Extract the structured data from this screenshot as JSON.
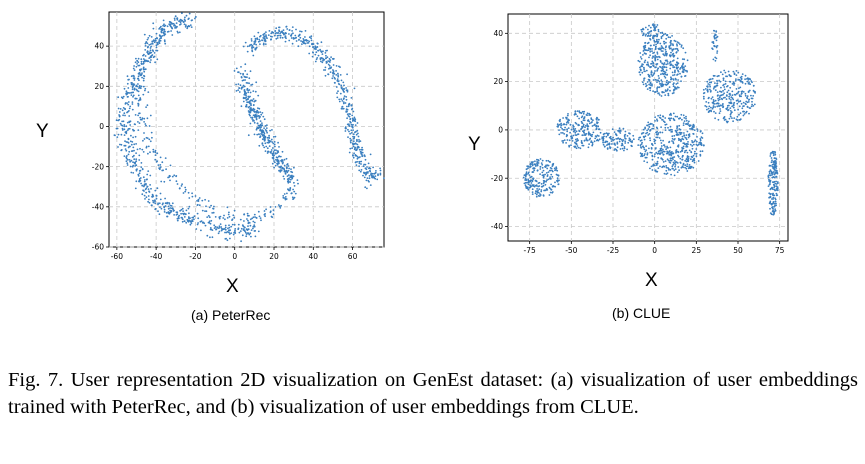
{
  "caption": "Fig. 7.  User representation 2D visualization on GenEst dataset: (a) visualization of user embeddings trained with PeterRec, and (b) visualization of user embeddings from CLUE.",
  "colors": {
    "point": "#3a7fbf",
    "grid": "#c8c8c8",
    "frame": "#000000"
  },
  "chart_data": [
    {
      "type": "scatter",
      "title": "(a) PeterRec",
      "xlabel": "X",
      "ylabel": "Y",
      "xlim": [
        -64,
        76
      ],
      "ylim": [
        -60,
        57
      ],
      "xticks": [
        -60,
        -40,
        -20,
        0,
        20,
        40,
        60
      ],
      "yticks": [
        -60,
        -40,
        -20,
        0,
        20,
        40
      ],
      "grid": true,
      "clusters": [
        {
          "shape": "curved band",
          "path": [
            [
              -22,
              53
            ],
            [
              -33,
              50
            ],
            [
              -42,
              40
            ],
            [
              -50,
              25
            ],
            [
              -55,
              10
            ],
            [
              -56,
              -2
            ],
            [
              -52,
              -15
            ],
            [
              -46,
              -28
            ],
            [
              -40,
              -38
            ],
            [
              -28,
              -44
            ],
            [
              -15,
              -48
            ],
            [
              -4,
              -52
            ],
            [
              6,
              -52
            ],
            [
              12,
              -46
            ]
          ],
          "point_count": 650,
          "spread": 4
        },
        {
          "shape": "curved band",
          "path": [
            [
              -27,
              53
            ],
            [
              -40,
              46
            ],
            [
              -46,
              32
            ],
            [
              -49,
              16
            ],
            [
              -47,
              2
            ],
            [
              -42,
              -12
            ],
            [
              -33,
              -25
            ],
            [
              -22,
              -35
            ],
            [
              -10,
              -42
            ],
            [
              3,
              -46
            ],
            [
              15,
              -44
            ],
            [
              24,
              -38
            ],
            [
              28,
              -32
            ]
          ],
          "point_count": 260,
          "spread": 3
        },
        {
          "shape": "curved band",
          "path": [
            [
              3,
              30
            ],
            [
              8,
              12
            ],
            [
              15,
              -2
            ],
            [
              22,
              -15
            ],
            [
              28,
              -26
            ],
            [
              30,
              -34
            ]
          ],
          "point_count": 230,
          "spread": 3
        },
        {
          "shape": "curved band",
          "path": [
            [
              6,
              38
            ],
            [
              14,
              44
            ],
            [
              25,
              47
            ],
            [
              38,
              42
            ],
            [
              48,
              32
            ],
            [
              55,
              18
            ],
            [
              60,
              0
            ],
            [
              62,
              -12
            ],
            [
              66,
              -20
            ],
            [
              70,
              -27
            ],
            [
              72,
              -22
            ]
          ],
          "point_count": 520,
          "spread": 3
        },
        {
          "shape": "curved band",
          "path": [
            [
              3,
              20
            ],
            [
              8,
              10
            ],
            [
              12,
              0
            ],
            [
              17,
              -10
            ],
            [
              23,
              -19
            ],
            [
              27,
              -24
            ]
          ],
          "point_count": 160,
          "spread": 2.5
        }
      ]
    },
    {
      "type": "scatter",
      "title": "(b) CLUE",
      "xlabel": "X",
      "ylabel": "Y",
      "xlim": [
        -88,
        80
      ],
      "ylim": [
        -46,
        48
      ],
      "xticks": [
        -75,
        -50,
        -25,
        0,
        25,
        50,
        75
      ],
      "yticks": [
        -40,
        -20,
        0,
        20,
        40
      ],
      "grid": true,
      "clusters": [
        {
          "shape": "blob",
          "center": [
            -68,
            -20
          ],
          "radius": [
            11,
            8
          ],
          "point_count": 230
        },
        {
          "shape": "blob",
          "center": [
            -45,
            0
          ],
          "radius": [
            14,
            8
          ],
          "point_count": 230
        },
        {
          "shape": "blob",
          "center": [
            -22,
            -4
          ],
          "radius": [
            10,
            5
          ],
          "point_count": 110
        },
        {
          "shape": "blob",
          "center": [
            5,
            27
          ],
          "radius": [
            15,
            13
          ],
          "point_count": 430
        },
        {
          "shape": "blob",
          "center": [
            45,
            14
          ],
          "radius": [
            16,
            11
          ],
          "point_count": 320
        },
        {
          "shape": "blob",
          "center": [
            10,
            -6
          ],
          "radius": [
            20,
            13
          ],
          "point_count": 480
        },
        {
          "shape": "blob",
          "center": [
            -2,
            41
          ],
          "radius": [
            7,
            3
          ],
          "point_count": 50
        },
        {
          "shape": "blob",
          "center": [
            36,
            35
          ],
          "radius": [
            2,
            7
          ],
          "point_count": 30
        },
        {
          "shape": "blob",
          "center": [
            71,
            -22
          ],
          "radius": [
            3,
            14
          ],
          "point_count": 180
        }
      ]
    }
  ]
}
